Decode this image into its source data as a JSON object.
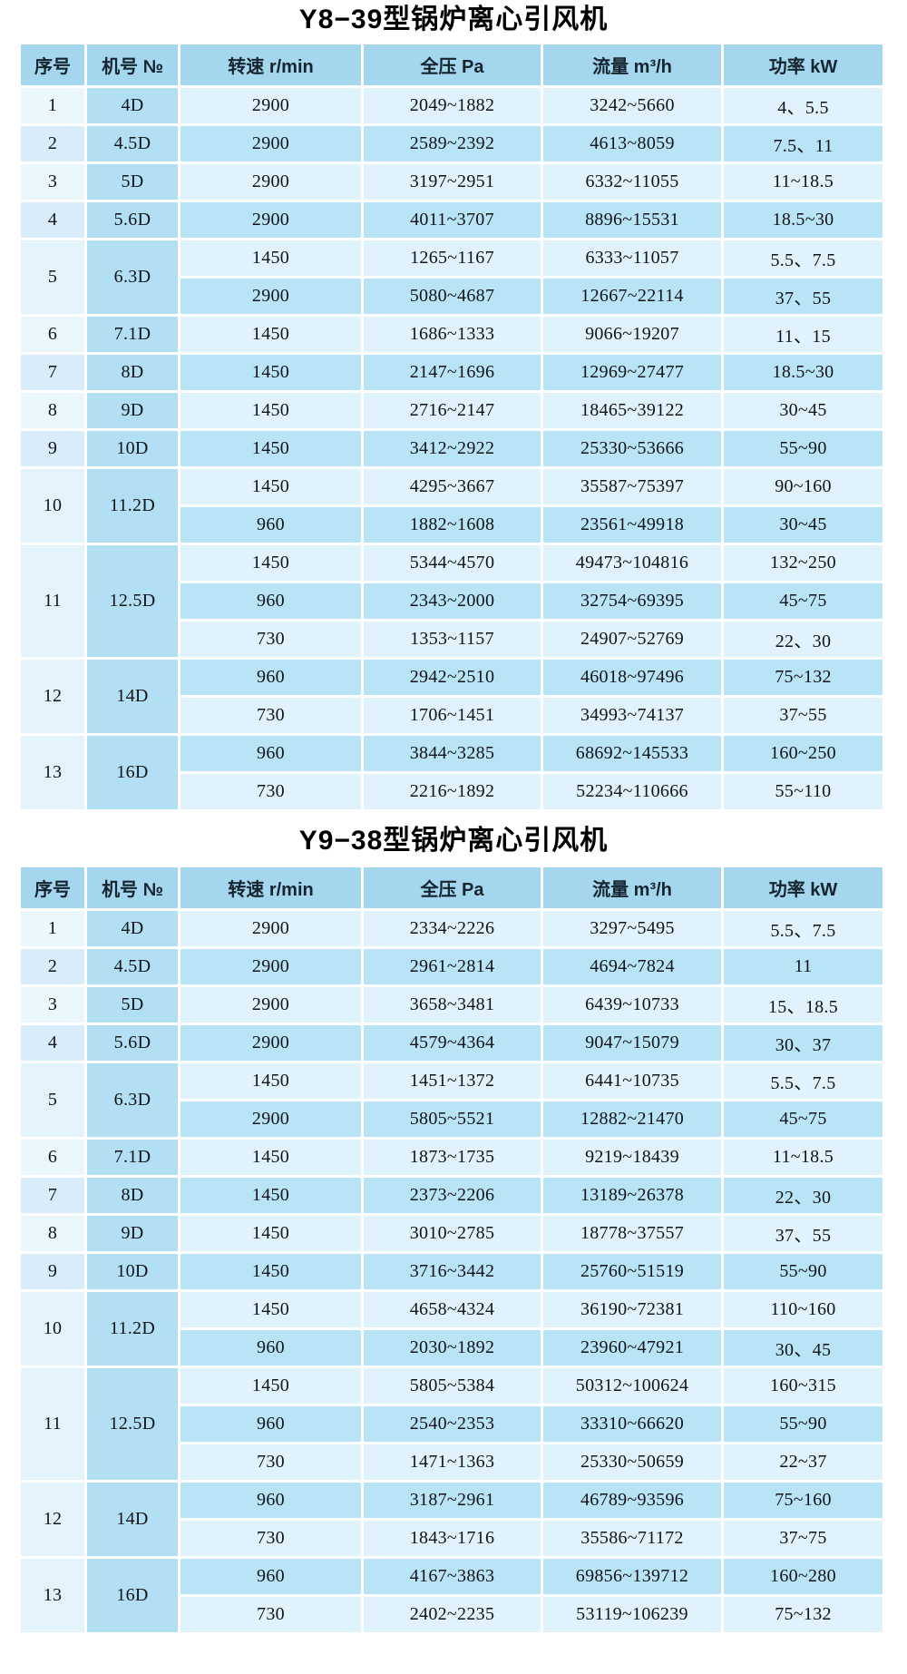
{
  "colors": {
    "header_bg": "#a4d7ee",
    "row_light": "#e0f2fb",
    "row_dark": "#b9e4f6",
    "model_column_bg": "#b2dff3",
    "index_column_bg": "#e2f3fb",
    "grid_lines": "#ffffff",
    "text": "#101418"
  },
  "tables": [
    {
      "title": "Y8−39型锅炉离心引风机",
      "columns": [
        "序号",
        "机号 №",
        "转速 r/min",
        "全压 Pa",
        "流量 m³/h",
        "功率 kW"
      ],
      "groups": [
        {
          "no": "1",
          "model": "4D",
          "rows": [
            [
              "2900",
              "2049~1882",
              "3242~5660",
              "4、5.5"
            ]
          ]
        },
        {
          "no": "2",
          "model": "4.5D",
          "rows": [
            [
              "2900",
              "2589~2392",
              "4613~8059",
              "7.5、11"
            ]
          ]
        },
        {
          "no": "3",
          "model": "5D",
          "rows": [
            [
              "2900",
              "3197~2951",
              "6332~11055",
              "11~18.5"
            ]
          ]
        },
        {
          "no": "4",
          "model": "5.6D",
          "rows": [
            [
              "2900",
              "4011~3707",
              "8896~15531",
              "18.5~30"
            ]
          ]
        },
        {
          "no": "5",
          "model": "6.3D",
          "rows": [
            [
              "1450",
              "1265~1167",
              "6333~11057",
              "5.5、7.5"
            ],
            [
              "2900",
              "5080~4687",
              "12667~22114",
              "37、55"
            ]
          ]
        },
        {
          "no": "6",
          "model": "7.1D",
          "rows": [
            [
              "1450",
              "1686~1333",
              "9066~19207",
              "11、15"
            ]
          ]
        },
        {
          "no": "7",
          "model": "8D",
          "rows": [
            [
              "1450",
              "2147~1696",
              "12969~27477",
              "18.5~30"
            ]
          ]
        },
        {
          "no": "8",
          "model": "9D",
          "rows": [
            [
              "1450",
              "2716~2147",
              "18465~39122",
              "30~45"
            ]
          ]
        },
        {
          "no": "9",
          "model": "10D",
          "rows": [
            [
              "1450",
              "3412~2922",
              "25330~53666",
              "55~90"
            ]
          ]
        },
        {
          "no": "10",
          "model": "11.2D",
          "rows": [
            [
              "1450",
              "4295~3667",
              "35587~75397",
              "90~160"
            ],
            [
              "960",
              "1882~1608",
              "23561~49918",
              "30~45"
            ]
          ]
        },
        {
          "no": "11",
          "model": "12.5D",
          "rows": [
            [
              "1450",
              "5344~4570",
              "49473~104816",
              "132~250"
            ],
            [
              "960",
              "2343~2000",
              "32754~69395",
              "45~75"
            ],
            [
              "730",
              "1353~1157",
              "24907~52769",
              "22、30"
            ]
          ]
        },
        {
          "no": "12",
          "model": "14D",
          "rows": [
            [
              "960",
              "2942~2510",
              "46018~97496",
              "75~132"
            ],
            [
              "730",
              "1706~1451",
              "34993~74137",
              "37~55"
            ]
          ]
        },
        {
          "no": "13",
          "model": "16D",
          "rows": [
            [
              "960",
              "3844~3285",
              "68692~145533",
              "160~250"
            ],
            [
              "730",
              "2216~1892",
              "52234~110666",
              "55~110"
            ]
          ]
        }
      ]
    },
    {
      "title": "Y9−38型锅炉离心引风机",
      "columns": [
        "序号",
        "机号 №",
        "转速 r/min",
        "全压 Pa",
        "流量 m³/h",
        "功率 kW"
      ],
      "groups": [
        {
          "no": "1",
          "model": "4D",
          "rows": [
            [
              "2900",
              "2334~2226",
              "3297~5495",
              "5.5、7.5"
            ]
          ]
        },
        {
          "no": "2",
          "model": "4.5D",
          "rows": [
            [
              "2900",
              "2961~2814",
              "4694~7824",
              "11"
            ]
          ]
        },
        {
          "no": "3",
          "model": "5D",
          "rows": [
            [
              "2900",
              "3658~3481",
              "6439~10733",
              "15、18.5"
            ]
          ]
        },
        {
          "no": "4",
          "model": "5.6D",
          "rows": [
            [
              "2900",
              "4579~4364",
              "9047~15079",
              "30、37"
            ]
          ]
        },
        {
          "no": "5",
          "model": "6.3D",
          "rows": [
            [
              "1450",
              "1451~1372",
              "6441~10735",
              "5.5、7.5"
            ],
            [
              "2900",
              "5805~5521",
              "12882~21470",
              "45~75"
            ]
          ]
        },
        {
          "no": "6",
          "model": "7.1D",
          "rows": [
            [
              "1450",
              "1873~1735",
              "9219~18439",
              "11~18.5"
            ]
          ]
        },
        {
          "no": "7",
          "model": "8D",
          "rows": [
            [
              "1450",
              "2373~2206",
              "13189~26378",
              "22、30"
            ]
          ]
        },
        {
          "no": "8",
          "model": "9D",
          "rows": [
            [
              "1450",
              "3010~2785",
              "18778~37557",
              "37、55"
            ]
          ]
        },
        {
          "no": "9",
          "model": "10D",
          "rows": [
            [
              "1450",
              "3716~3442",
              "25760~51519",
              "55~90"
            ]
          ]
        },
        {
          "no": "10",
          "model": "11.2D",
          "rows": [
            [
              "1450",
              "4658~4324",
              "36190~72381",
              "110~160"
            ],
            [
              "960",
              "2030~1892",
              "23960~47921",
              "30、45"
            ]
          ]
        },
        {
          "no": "11",
          "model": "12.5D",
          "rows": [
            [
              "1450",
              "5805~5384",
              "50312~100624",
              "160~315"
            ],
            [
              "960",
              "2540~2353",
              "33310~66620",
              "55~90"
            ],
            [
              "730",
              "1471~1363",
              "25330~50659",
              "22~37"
            ]
          ]
        },
        {
          "no": "12",
          "model": "14D",
          "rows": [
            [
              "960",
              "3187~2961",
              "46789~93596",
              "75~160"
            ],
            [
              "730",
              "1843~1716",
              "35586~71172",
              "37~75"
            ]
          ]
        },
        {
          "no": "13",
          "model": "16D",
          "rows": [
            [
              "960",
              "4167~3863",
              "69856~139712",
              "160~280"
            ],
            [
              "730",
              "2402~2235",
              "53119~106239",
              "75~132"
            ]
          ]
        }
      ]
    }
  ]
}
